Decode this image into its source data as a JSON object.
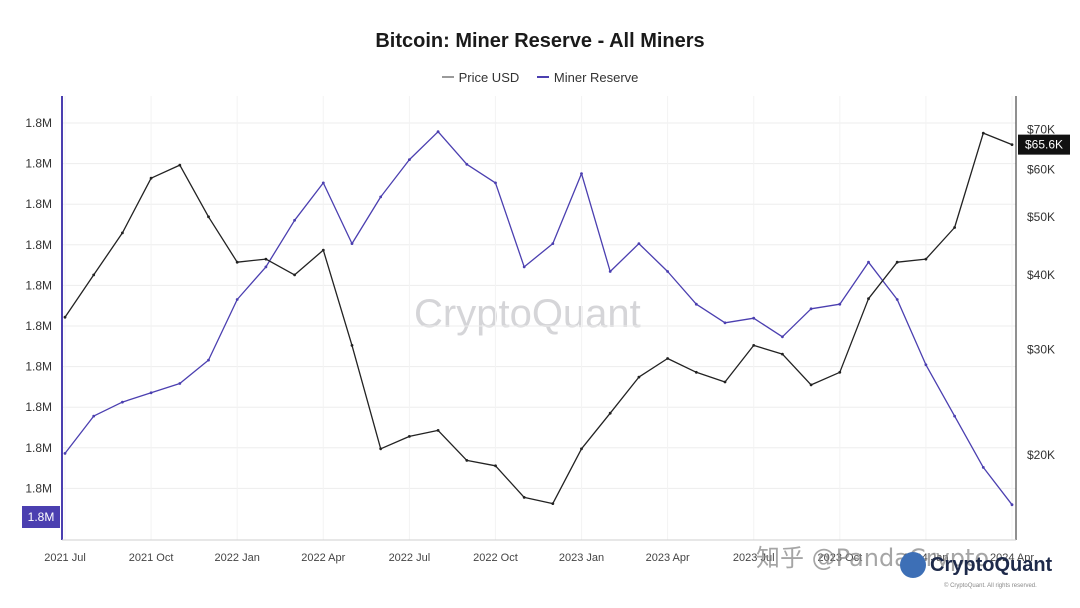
{
  "chart_data": {
    "type": "line",
    "title": "Bitcoin: Miner Reserve - All Miners",
    "dates": [
      "2021-07",
      "2021-08",
      "2021-09",
      "2021-10",
      "2021-11",
      "2021-12",
      "2022-01",
      "2022-02",
      "2022-03",
      "2022-04",
      "2022-05",
      "2022-06",
      "2022-07",
      "2022-08",
      "2022-09",
      "2022-10",
      "2022-11",
      "2022-12",
      "2023-01",
      "2023-02",
      "2023-03",
      "2023-04",
      "2023-05",
      "2023-06",
      "2023-07",
      "2023-08",
      "2023-09",
      "2023-10",
      "2023-11",
      "2023-12",
      "2024-01",
      "2024-02",
      "2024-03",
      "2024-04"
    ],
    "series": [
      {
        "name": "Price USD",
        "color": "#222222",
        "axis": "right",
        "values": [
          34000,
          40000,
          47000,
          58000,
          61000,
          50000,
          42000,
          42500,
          40000,
          44000,
          30500,
          20500,
          21500,
          22000,
          19600,
          19200,
          17000,
          16600,
          20500,
          23500,
          27000,
          29000,
          27500,
          26500,
          30500,
          29500,
          26200,
          27500,
          36500,
          42000,
          42500,
          48000,
          69000,
          66000
        ]
      },
      {
        "name": "Miner Reserve",
        "color": "#4b3fb0",
        "axis": "left",
        "values": [
          1835620,
          1835780,
          1835840,
          1835880,
          1835920,
          1836020,
          1836280,
          1836420,
          1836620,
          1836780,
          1836520,
          1836720,
          1836880,
          1837000,
          1836860,
          1836780,
          1836420,
          1836520,
          1836820,
          1836400,
          1836520,
          1836400,
          1836260,
          1836180,
          1836200,
          1836120,
          1836240,
          1836260,
          1836440,
          1836280,
          1836000,
          1835780,
          1835560,
          1835400
        ]
      }
    ],
    "left_axis": {
      "ylim": [
        1835300,
        1837050
      ],
      "tick_label": "1.8M",
      "tick_count": 10
    },
    "right_axis": {
      "scale": "log",
      "ylim": [
        15000,
        72000
      ],
      "ticks": [
        20000,
        30000,
        40000,
        50000,
        60000,
        70000
      ],
      "tick_labels": [
        "$20K",
        "$30K",
        "$40K",
        "$50K",
        "$60K",
        "$70K"
      ]
    },
    "x_ticks": [
      "2021 Jul",
      "2021 Oct",
      "2022 Jan",
      "2022 Apr",
      "2022 Jul",
      "2022 Oct",
      "2023 Jan",
      "2023 Apr",
      "2023 Jul",
      "2023 Oct",
      "2024 Jan",
      "2024 Apr"
    ],
    "x_tick_dates": [
      "2021-07",
      "2021-10",
      "2022-01",
      "2022-04",
      "2022-07",
      "2022-10",
      "2023-01",
      "2023-04",
      "2023-07",
      "2023-10",
      "2024-01",
      "2024-04"
    ],
    "last_price_label": "$65.6K",
    "last_reserve_label": "1.8M",
    "grid": true,
    "legend": "top-center"
  },
  "watermark": "CryptoQuant",
  "footer_watermark": "知乎 @PandaCrypto",
  "logo": {
    "text": "CryptoQuant",
    "tagline": "© CryptoQuant. All rights reserved."
  },
  "colors": {
    "price": "#222222",
    "reserve": "#4b3fb0",
    "badge_price": "#111111",
    "badge_reserve": "#4b3fb0",
    "grid": "#ededed"
  }
}
